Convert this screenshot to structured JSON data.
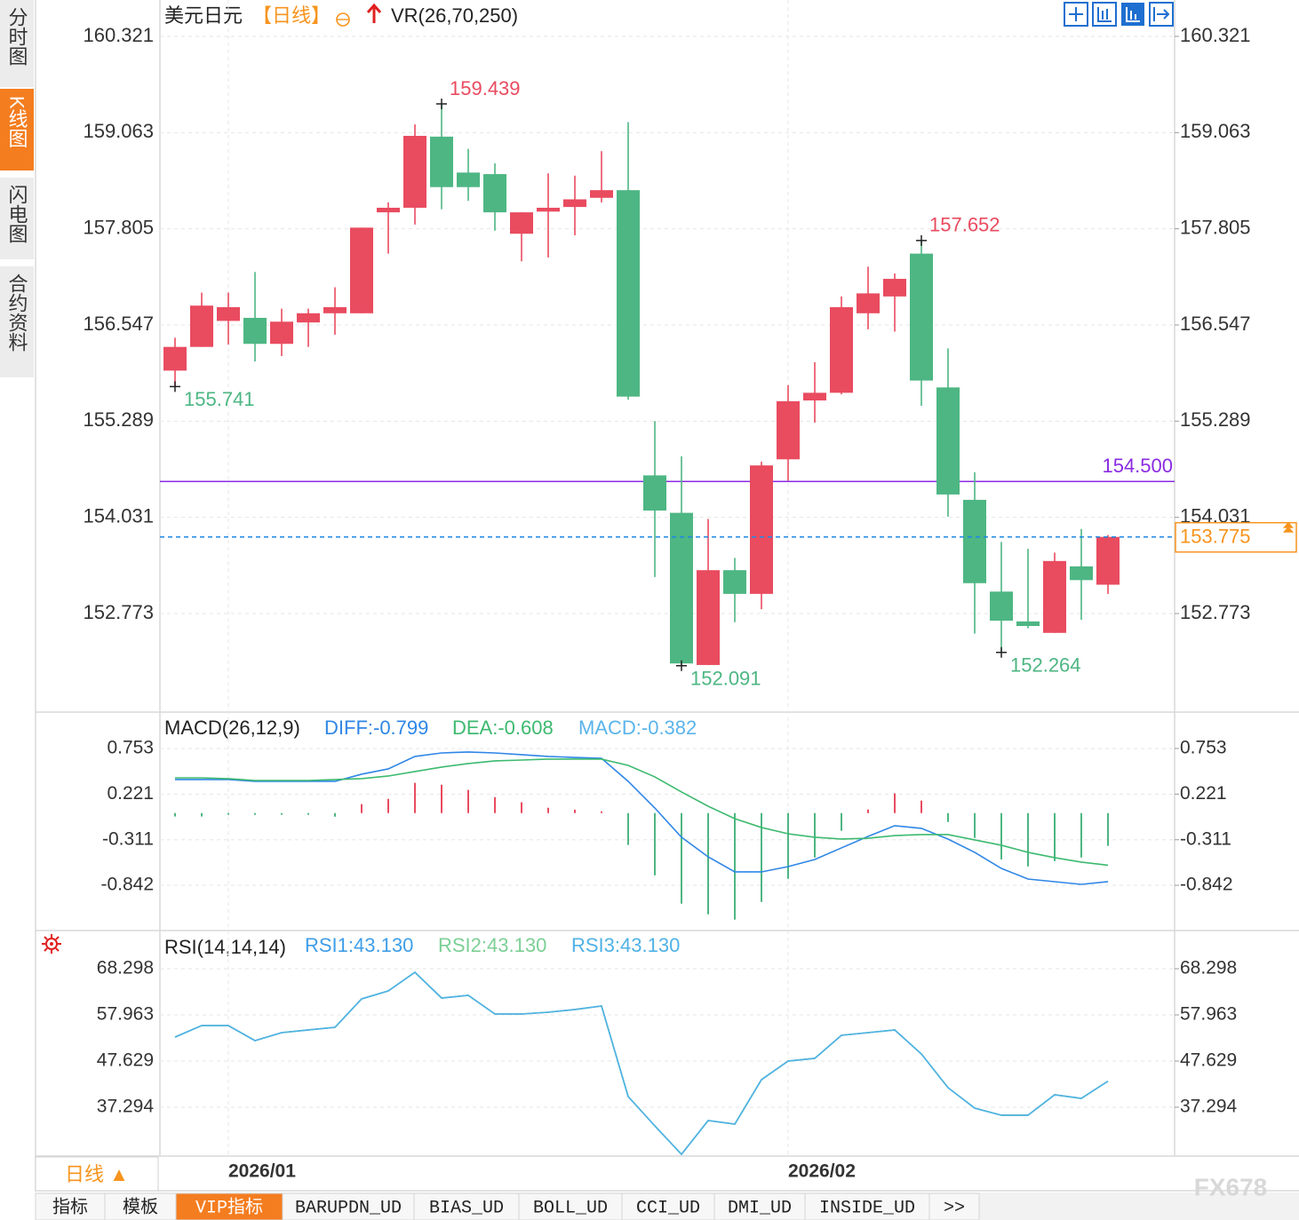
{
  "sidebar": {
    "tabs": [
      "分时图",
      "K线图",
      "闪电图",
      "合约资料"
    ],
    "active": 1
  },
  "chart_data": [
    {
      "type": "candlestick",
      "title": "美元日元",
      "period": "【日线】",
      "indicator": "VR(26,70,250)",
      "categories": [
        null,
        null,
        "2026/01",
        null,
        null,
        null,
        null,
        null,
        null,
        null,
        null,
        null,
        null,
        null,
        null,
        null,
        null,
        null,
        null,
        null,
        null,
        null,
        null,
        "2026/02",
        null,
        null,
        null,
        null,
        null,
        null,
        null,
        null,
        null,
        null,
        null,
        null
      ],
      "open": [
        155.95,
        156.26,
        156.6,
        156.64,
        156.3,
        156.58,
        156.7,
        156.7,
        158.02,
        158.08,
        159.01,
        158.54,
        158.52,
        157.74,
        158.03,
        158.09,
        158.21,
        158.31,
        154.58,
        154.09,
        152.1,
        153.34,
        153.03,
        154.79,
        155.56,
        155.66,
        156.7,
        156.92,
        157.48,
        155.73,
        154.26,
        153.06,
        152.67,
        152.52,
        153.39,
        153.15
      ],
      "close": [
        156.26,
        156.8,
        156.78,
        156.3,
        156.59,
        156.7,
        156.78,
        157.82,
        158.08,
        159.02,
        158.35,
        158.35,
        158.02,
        158.02,
        158.08,
        158.19,
        158.31,
        155.61,
        154.12,
        152.12,
        153.34,
        153.03,
        154.71,
        155.55,
        155.66,
        156.78,
        156.96,
        157.15,
        155.82,
        154.33,
        153.17,
        152.68,
        152.61,
        153.46,
        153.21,
        153.775
      ],
      "high": [
        156.38,
        156.97,
        156.97,
        157.24,
        156.76,
        156.76,
        157.04,
        157.82,
        158.15,
        159.17,
        159.439,
        158.85,
        158.66,
        158.02,
        158.53,
        158.5,
        158.82,
        159.2,
        155.29,
        154.83,
        154.01,
        153.5,
        154.76,
        155.76,
        156.06,
        156.92,
        157.31,
        157.22,
        157.652,
        156.24,
        154.62,
        153.71,
        153.62,
        153.57,
        153.88,
        153.8
      ],
      "low": [
        155.741,
        156.26,
        156.29,
        156.07,
        156.14,
        156.26,
        156.42,
        156.7,
        157.48,
        157.86,
        158.06,
        158.17,
        157.78,
        157.38,
        157.43,
        157.72,
        158.15,
        155.57,
        153.25,
        152.091,
        152.1,
        152.66,
        152.83,
        154.51,
        155.27,
        155.64,
        156.49,
        156.46,
        155.49,
        154.04,
        152.51,
        152.264,
        152.58,
        152.52,
        152.69,
        153.03
      ],
      "up_color": "#e94b5f",
      "down_color": "#4db683",
      "ylim": [
        151.507,
        160.797
      ],
      "yticks": [
        160.321,
        159.063,
        157.805,
        156.547,
        155.289,
        154.031,
        152.773
      ],
      "grid": true,
      "hlines": [
        {
          "value": 154.5,
          "label": "154.500",
          "color": "#8a2be2"
        }
      ],
      "last_price_color": "#f7941d",
      "last_line_color": "#1e88e5"
    },
    {
      "type": "macd",
      "title": "MACD(26,12,9)",
      "ylim": [
        -1.359,
        1.146
      ],
      "yticks": [
        0.753,
        0.221,
        -0.311,
        -0.842
      ],
      "grid": true,
      "series": [
        {
          "name": "DIFF",
          "legend_label": "DIFF:-0.799",
          "type": "line",
          "color": "#2f86e6",
          "values": [
            0.391,
            0.391,
            0.391,
            0.37,
            0.37,
            0.37,
            0.37,
            0.453,
            0.515,
            0.66,
            0.701,
            0.712,
            0.701,
            0.681,
            0.66,
            0.649,
            0.639,
            0.37,
            0.059,
            -0.282,
            -0.51,
            -0.686,
            -0.686,
            -0.624,
            -0.541,
            -0.406,
            -0.272,
            -0.147,
            -0.178,
            -0.303,
            -0.458,
            -0.645,
            -0.769,
            -0.8,
            -0.831,
            -0.799
          ]
        },
        {
          "name": "DEA",
          "legend_label": "DEA:-0.608",
          "type": "line",
          "color": "#3dba6f",
          "values": [
            0.411,
            0.411,
            0.401,
            0.38,
            0.38,
            0.38,
            0.391,
            0.401,
            0.432,
            0.484,
            0.536,
            0.577,
            0.608,
            0.618,
            0.629,
            0.629,
            0.629,
            0.556,
            0.422,
            0.246,
            0.08,
            -0.065,
            -0.168,
            -0.241,
            -0.282,
            -0.303,
            -0.293,
            -0.262,
            -0.251,
            -0.251,
            -0.313,
            -0.375,
            -0.458,
            -0.52,
            -0.572,
            -0.608
          ]
        },
        {
          "name": "MACD",
          "legend_label": "MACD:-0.382",
          "type": "bar",
          "color": "#5ab4ea",
          "up_color": "#e94b5f",
          "down_color": "#4db683",
          "values": [
            -0.04,
            -0.04,
            -0.02,
            -0.02,
            -0.02,
            -0.02,
            -0.042,
            0.104,
            0.166,
            0.352,
            0.33,
            0.27,
            0.186,
            0.126,
            0.062,
            0.04,
            0.02,
            -0.372,
            -0.726,
            -1.056,
            -1.18,
            -1.242,
            -1.036,
            -0.766,
            -0.518,
            -0.206,
            0.042,
            0.23,
            0.146,
            -0.104,
            -0.29,
            -0.54,
            -0.622,
            -0.56,
            -0.518,
            -0.382
          ]
        }
      ]
    },
    {
      "type": "line",
      "title": "RSI(14,14,14)",
      "ylim": [
        26.762,
        76.446
      ],
      "yticks": [
        68.298,
        57.963,
        47.629,
        37.294
      ],
      "grid": true,
      "series": [
        {
          "name": "RSI1",
          "legend_label": "RSI1:43.130",
          "type": "line",
          "color": "#3f9ee8",
          "values": [
            52.99,
            55.58,
            55.58,
            52.2,
            53.99,
            54.59,
            55.18,
            61.54,
            63.33,
            67.5,
            61.74,
            62.34,
            58.16,
            58.16,
            58.56,
            59.16,
            59.95,
            39.68,
            33.12,
            26.76,
            34.32,
            33.52,
            43.46,
            47.63,
            48.23,
            53.39,
            53.99,
            54.59,
            49.22,
            41.67,
            37.09,
            35.51,
            35.51,
            40.08,
            39.28,
            43.13
          ]
        },
        {
          "name": "RSI2",
          "legend_label": "RSI2:43.130",
          "type": "line",
          "color": "#7ccf95",
          "values": [
            52.99,
            55.58,
            55.58,
            52.2,
            53.99,
            54.59,
            55.18,
            61.54,
            63.33,
            67.5,
            61.74,
            62.34,
            58.16,
            58.16,
            58.56,
            59.16,
            59.95,
            39.68,
            33.12,
            26.76,
            34.32,
            33.52,
            43.46,
            47.63,
            48.23,
            53.39,
            53.99,
            54.59,
            49.22,
            41.67,
            37.09,
            35.51,
            35.51,
            40.08,
            39.28,
            43.13
          ]
        },
        {
          "name": "RSI3",
          "legend_label": "RSI3:43.130",
          "type": "line",
          "color": "#4fb2e6",
          "values": [
            52.99,
            55.58,
            55.58,
            52.2,
            53.99,
            54.59,
            55.18,
            61.54,
            63.33,
            67.5,
            61.74,
            62.34,
            58.16,
            58.16,
            58.56,
            59.16,
            59.95,
            39.68,
            33.12,
            26.76,
            34.32,
            33.52,
            43.46,
            47.63,
            48.23,
            53.39,
            53.99,
            54.59,
            49.22,
            41.67,
            37.09,
            35.51,
            35.51,
            40.08,
            39.28,
            43.13
          ]
        }
      ]
    }
  ],
  "footer": {
    "period_button": "日线 ▲",
    "tabs": [
      "指标",
      "模板",
      "VIP指标",
      "BARUPDN_UD",
      "BIAS_UD",
      "BOLL_UD",
      "CCI_UD",
      "DMI_UD",
      "INSIDE_UD",
      ">>"
    ],
    "active_tab": 2
  },
  "watermark": "FX678"
}
